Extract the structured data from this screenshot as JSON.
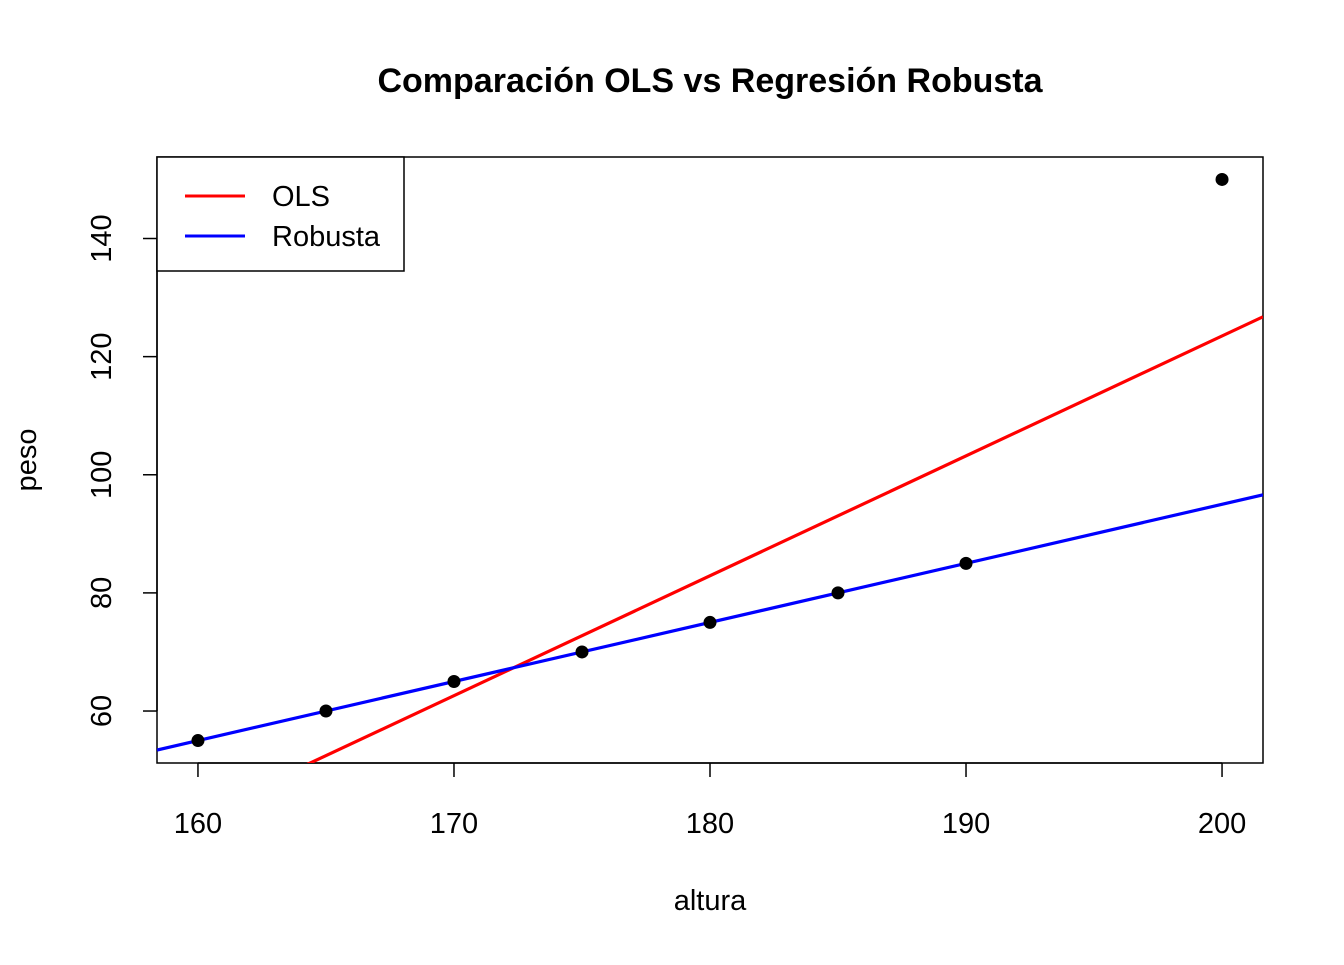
{
  "chart_data": {
    "type": "scatter",
    "title": "Comparación OLS vs Regresión Robusta",
    "xlabel": "altura",
    "ylabel": "peso",
    "xlim": [
      158.4,
      201.6
    ],
    "ylim": [
      51.2,
      153.8
    ],
    "x_ticks": [
      160,
      170,
      180,
      190,
      200
    ],
    "y_ticks": [
      60,
      80,
      100,
      120,
      140
    ],
    "grid": false,
    "points": {
      "color": "#000000",
      "x": [
        160,
        165,
        170,
        175,
        180,
        185,
        190,
        200
      ],
      "y": [
        55,
        60,
        65,
        70,
        75,
        80,
        85,
        150
      ]
    },
    "lines": [
      {
        "name": "OLS",
        "color": "#ff0000",
        "intercept": -282.5,
        "slope": 2.03
      },
      {
        "name": "Robusta",
        "color": "#0000ff",
        "intercept": -105,
        "slope": 1.0
      }
    ],
    "legend": {
      "position": "top-left",
      "entries": [
        "OLS",
        "Robusta"
      ]
    }
  }
}
